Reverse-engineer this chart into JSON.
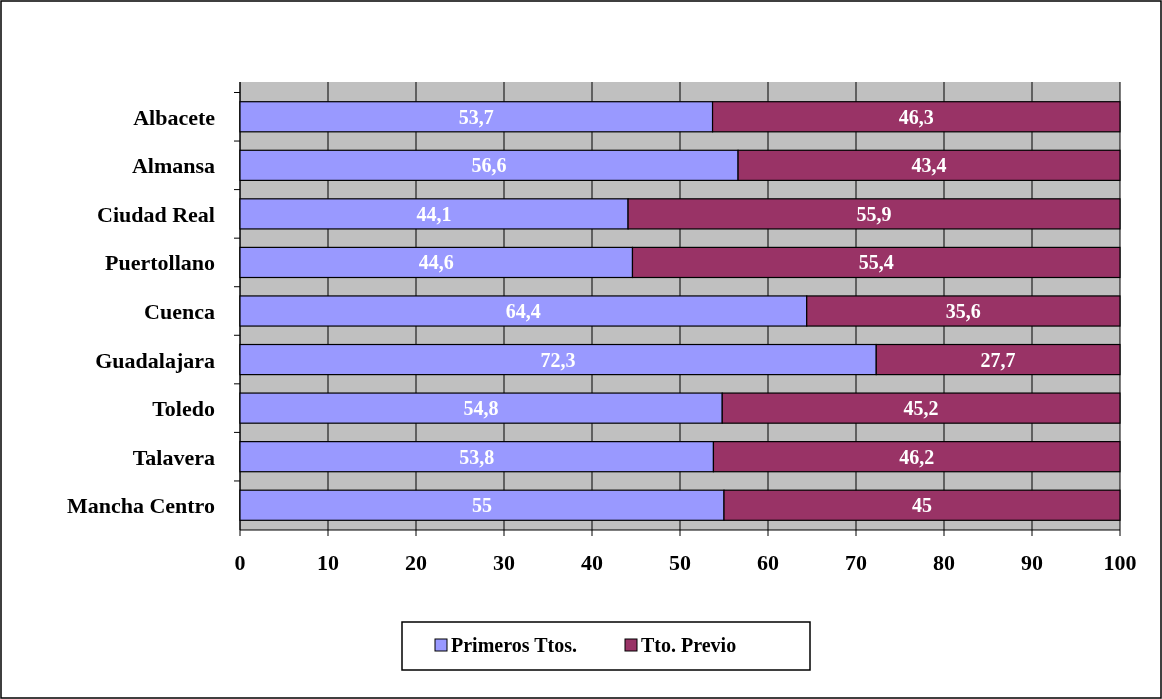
{
  "chart_data": {
    "type": "bar",
    "orientation": "horizontal",
    "stacked": true,
    "categories": [
      "Albacete",
      "Almansa",
      "Ciudad Real",
      "Puertollano",
      "Cuenca",
      "Guadalajara",
      "Toledo",
      "Talavera",
      "Mancha Centro"
    ],
    "series": [
      {
        "name": "Primeros Ttos.",
        "color": "#9999ff",
        "values": [
          53.7,
          56.6,
          44.1,
          44.6,
          64.4,
          72.3,
          54.8,
          53.8,
          55
        ],
        "value_labels": [
          "53,7",
          "56,6",
          "44,1",
          "44,6",
          "64,4",
          "72,3",
          "54,8",
          "53,8",
          "55"
        ]
      },
      {
        "name": "Tto. Previo",
        "color": "#993366",
        "values": [
          46.3,
          43.4,
          55.9,
          55.4,
          35.6,
          27.7,
          45.2,
          46.2,
          45
        ],
        "value_labels": [
          "46,3",
          "43,4",
          "55,9",
          "55,4",
          "35,6",
          "27,7",
          "45,2",
          "46,2",
          "45"
        ]
      }
    ],
    "xlim": [
      0,
      100
    ],
    "xticks": [
      0,
      10,
      20,
      30,
      40,
      50,
      60,
      70,
      80,
      90,
      100
    ],
    "grid": "x",
    "legend": "bottom"
  }
}
